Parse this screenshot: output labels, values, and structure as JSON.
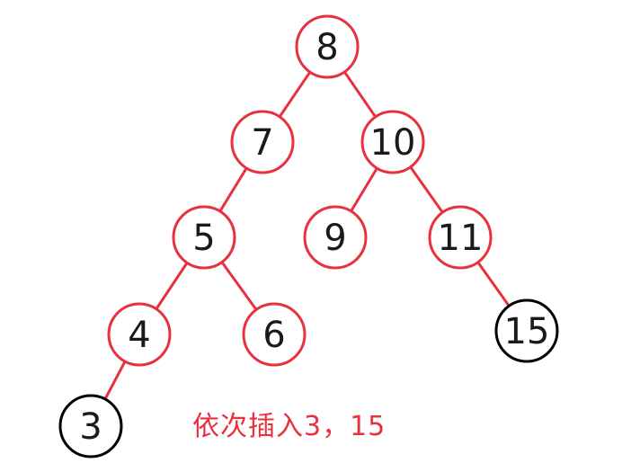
{
  "tree": {
    "edge_color": "#e8313f",
    "nodes": [
      {
        "id": "n8",
        "label": "8",
        "color": "red"
      },
      {
        "id": "n7",
        "label": "7",
        "color": "red"
      },
      {
        "id": "n10",
        "label": "10",
        "color": "red"
      },
      {
        "id": "n5",
        "label": "5",
        "color": "red"
      },
      {
        "id": "n9",
        "label": "9",
        "color": "red"
      },
      {
        "id": "n11",
        "label": "11",
        "color": "red"
      },
      {
        "id": "n4",
        "label": "4",
        "color": "red"
      },
      {
        "id": "n6",
        "label": "6",
        "color": "red"
      },
      {
        "id": "n15",
        "label": "15",
        "color": "black"
      },
      {
        "id": "n3",
        "label": "3",
        "color": "black"
      }
    ],
    "edges": [
      [
        "n8",
        "n7"
      ],
      [
        "n8",
        "n10"
      ],
      [
        "n7",
        "n5"
      ],
      [
        "n10",
        "n9"
      ],
      [
        "n10",
        "n11"
      ],
      [
        "n5",
        "n4"
      ],
      [
        "n5",
        "n6"
      ],
      [
        "n11",
        "n15"
      ],
      [
        "n4",
        "n3"
      ]
    ]
  },
  "caption": "依次插入3，15"
}
